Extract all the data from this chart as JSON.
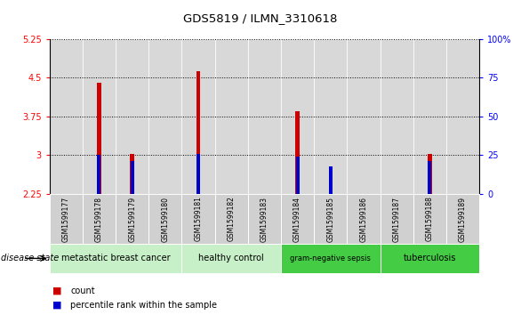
{
  "title": "GDS5819 / ILMN_3310618",
  "samples": [
    "GSM1599177",
    "GSM1599178",
    "GSM1599179",
    "GSM1599180",
    "GSM1599181",
    "GSM1599182",
    "GSM1599183",
    "GSM1599184",
    "GSM1599185",
    "GSM1599186",
    "GSM1599187",
    "GSM1599188",
    "GSM1599189"
  ],
  "count_values": [
    2.25,
    4.4,
    3.02,
    2.25,
    4.62,
    2.25,
    2.25,
    3.85,
    2.62,
    2.25,
    2.25,
    3.02,
    2.25
  ],
  "percentile_values": [
    2.25,
    3.0,
    2.88,
    2.25,
    3.02,
    2.25,
    2.25,
    2.97,
    2.78,
    2.25,
    2.25,
    2.88,
    2.25
  ],
  "ymin": 2.25,
  "ymax": 5.25,
  "yticks": [
    2.25,
    3.0,
    3.75,
    4.5,
    5.25
  ],
  "ytick_labels": [
    "2.25",
    "3",
    "3.75",
    "4.5",
    "5.25"
  ],
  "right_yticks": [
    0,
    25,
    50,
    75,
    100
  ],
  "right_ytick_labels": [
    "0",
    "25",
    "50",
    "75",
    "100%"
  ],
  "groups": [
    {
      "label": "metastatic breast cancer",
      "start": 0,
      "end": 3,
      "color": "#c8f0c8"
    },
    {
      "label": "healthy control",
      "start": 4,
      "end": 6,
      "color": "#c8f0c8"
    },
    {
      "label": "gram-negative sepsis",
      "start": 7,
      "end": 9,
      "color": "#44cc44"
    },
    {
      "label": "tuberculosis",
      "start": 10,
      "end": 12,
      "color": "#44cc44"
    }
  ],
  "bar_color": "#cc0000",
  "blue_color": "#0000cc",
  "sample_bg": "#d0d0d0",
  "disease_state_label": "disease state",
  "legend_count": "count",
  "legend_percentile": "percentile rank within the sample"
}
